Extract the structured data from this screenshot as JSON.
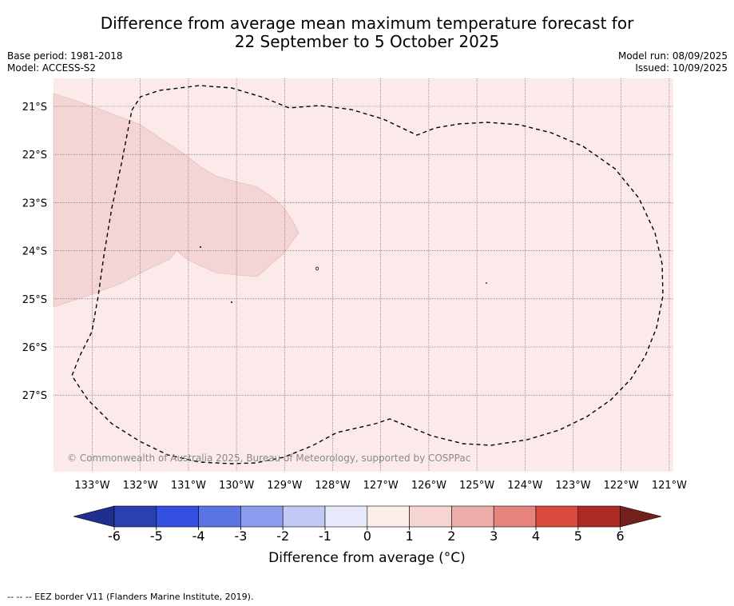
{
  "title_line1": "Difference from average mean maximum temperature forecast for",
  "title_line2": "22 September to 5 October 2025",
  "base_period": "Base period: 1981-2018",
  "model": "Model: ACCESS-S2",
  "model_run": "Model run: 08/09/2025",
  "issued": "Issued: 10/09/2025",
  "copyright": "© Commonwealth of Australia 2025, Bureau of Meteorology, supported by COSPPac",
  "lat_labels": [
    "21°S",
    "22°S",
    "23°S",
    "24°S",
    "25°S",
    "26°S",
    "27°S"
  ],
  "lon_labels": [
    "133°W",
    "132°W",
    "131°W",
    "130°W",
    "129°W",
    "128°W",
    "127°W",
    "126°W",
    "125°W",
    "124°W",
    "123°W",
    "122°W",
    "121°W"
  ],
  "colorbar": {
    "label": "Difference from average (°C)",
    "ticks": [
      "-6",
      "-5",
      "-4",
      "-3",
      "-2",
      "-1",
      "0",
      "1",
      "2",
      "3",
      "4",
      "5",
      "6"
    ],
    "colors": [
      "#1e2f8f",
      "#2a3fb0",
      "#3350e0",
      "#5a74e6",
      "#8c9cee",
      "#c3c9f5",
      "#e7e9fb",
      "#fcecea",
      "#f5d4d2",
      "#edaea9",
      "#e6847c",
      "#d84a40",
      "#ad2a22",
      "#72201a"
    ]
  },
  "map_colors": {
    "background_anomaly": "#fbeae9",
    "region_anomaly": "#f5d5d4"
  },
  "footnote": "-- -- -- EEZ border V11 (Flanders Marine Institute, 2019)."
}
